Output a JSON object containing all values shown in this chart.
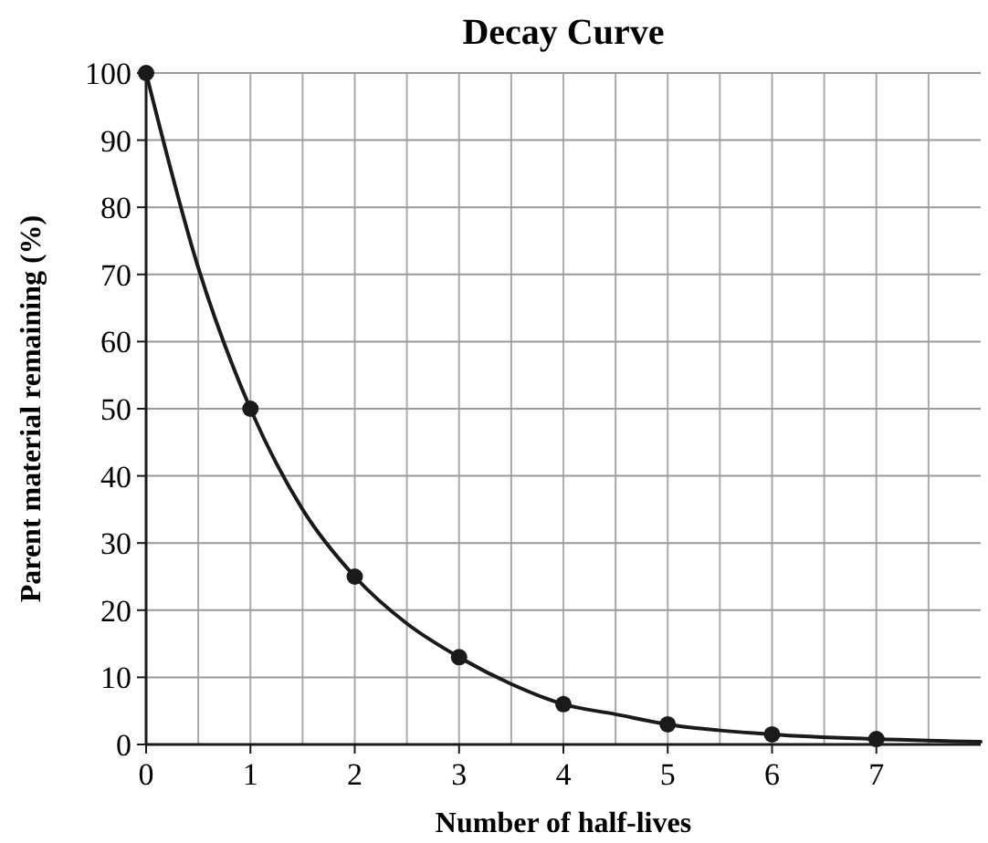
{
  "chart_data": {
    "type": "line",
    "title": "Decay Curve",
    "xlabel": "Number of half-lives",
    "ylabel": "Parent material remaining (%)",
    "xlim": [
      0,
      8
    ],
    "xticks": [
      0,
      {
        "value": 0.5,
        "label": null
      },
      1,
      {
        "value": 1.5,
        "label": null
      },
      2,
      {
        "value": 2.5,
        "label": null
      },
      3,
      {
        "value": 3.5,
        "label": null
      },
      4,
      {
        "value": 4.5,
        "label": null
      },
      5,
      {
        "value": 5.5,
        "label": null
      },
      6,
      {
        "value": 6.5,
        "label": null
      },
      7,
      {
        "value": 7.5,
        "label": null
      }
    ],
    "ylim": [
      0,
      100
    ],
    "yticks": [
      0,
      10,
      20,
      30,
      40,
      50,
      60,
      70,
      80,
      90,
      100
    ],
    "grid": true,
    "series": [
      {
        "color": "#1a1a1a",
        "marker": "none",
        "x": [
          0,
          0.5,
          1,
          1.5,
          2,
          2.5,
          3,
          3.5,
          4,
          4.5,
          5,
          6,
          7,
          8
        ],
        "values": [
          100,
          71,
          50,
          35,
          25,
          18,
          13,
          9,
          6,
          4.5,
          3,
          1.5,
          0.8,
          0.4
        ]
      },
      {
        "type": "scatter",
        "color": "#1a1a1a",
        "marker": "circle",
        "x": [
          0,
          1,
          2,
          3,
          4,
          5,
          6,
          7
        ],
        "values": [
          100,
          50,
          25,
          13,
          6,
          3,
          1.5,
          0.8
        ]
      }
    ]
  }
}
